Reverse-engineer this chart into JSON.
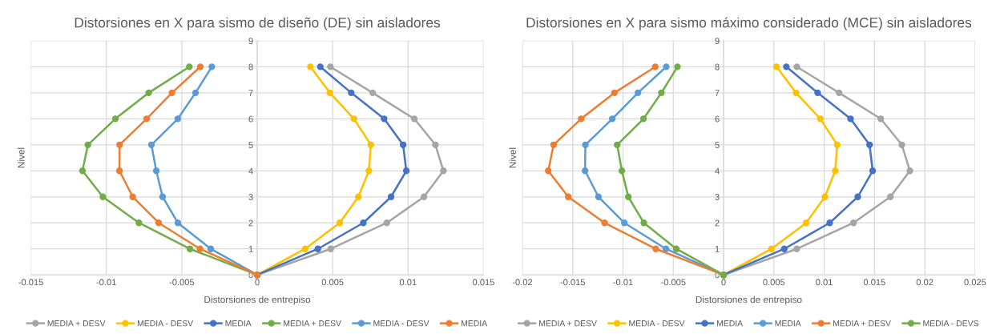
{
  "chart_data": [
    {
      "type": "line",
      "title": "Distorsiones en X para sismo de diseño (DE) sin aisladores",
      "xlabel": "Distorsiones de entrepiso",
      "ylabel": "Nivel",
      "xlim": [
        -0.015,
        0.015
      ],
      "xticks": [
        -0.015,
        -0.01,
        -0.005,
        0,
        0.005,
        0.01,
        0.015
      ],
      "ylim": [
        0,
        9
      ],
      "yticks": [
        0,
        1,
        2,
        3,
        4,
        5,
        6,
        7,
        8,
        9
      ],
      "grid": true,
      "legend": "bottom",
      "marker": "circle",
      "line_style": "solid",
      "series": [
        {
          "name": "MEDIA + DESV",
          "color": "#a5a5a5",
          "x": [
            0,
            0.00487,
            0.00859,
            0.01105,
            0.01234,
            0.01181,
            0.01041,
            0.00765,
            0.00485
          ],
          "values": [
            0,
            1,
            2,
            3,
            4,
            5,
            6,
            7,
            8
          ]
        },
        {
          "name": "MEDIA - DESV",
          "color": "#ffc000",
          "x": [
            0,
            0.00317,
            0.00547,
            0.0067,
            0.0074,
            0.00753,
            0.00641,
            0.00482,
            0.00352
          ],
          "values": [
            0,
            1,
            2,
            3,
            4,
            5,
            6,
            7,
            8
          ]
        },
        {
          "name": "MEDIA",
          "color": "#4472c4",
          "x": [
            0,
            0.00402,
            0.00703,
            0.00887,
            0.00988,
            0.00967,
            0.00841,
            0.00623,
            0.00418
          ],
          "values": [
            0,
            1,
            2,
            3,
            4,
            5,
            6,
            7,
            8
          ]
        },
        {
          "name": "MEDIA + DESV",
          "color": "#70ad47",
          "x": [
            0,
            -0.00446,
            -0.00784,
            -0.01023,
            -0.01158,
            -0.01122,
            -0.0094,
            -0.00719,
            -0.0045
          ],
          "values": [
            0,
            1,
            2,
            3,
            4,
            5,
            6,
            7,
            8
          ]
        },
        {
          "name": "MEDIA - DESV",
          "color": "#5b9bd5",
          "x": [
            0,
            -0.00308,
            -0.00526,
            -0.00627,
            -0.00669,
            -0.00701,
            -0.00526,
            -0.00409,
            -0.00301
          ],
          "values": [
            0,
            1,
            2,
            3,
            4,
            5,
            6,
            7,
            8
          ]
        },
        {
          "name": "MEDIA",
          "color": "#ed7d31",
          "x": [
            0,
            -0.00379,
            -0.00653,
            -0.00825,
            -0.00913,
            -0.00912,
            -0.00733,
            -0.00565,
            -0.00377
          ],
          "values": [
            0,
            1,
            2,
            3,
            4,
            5,
            6,
            7,
            8
          ]
        }
      ]
    },
    {
      "type": "line",
      "title": "Distorsiones en X para sismo máximo considerado (MCE) sin aisladores",
      "xlabel": "Distorsiones de entrepiso",
      "ylabel": "Nivel",
      "xlim": [
        -0.02,
        0.025
      ],
      "xticks": [
        -0.02,
        -0.015,
        -0.01,
        -0.005,
        0,
        0.005,
        0.01,
        0.015,
        0.02,
        0.025
      ],
      "ylim": [
        0,
        9
      ],
      "yticks": [
        0,
        1,
        2,
        3,
        4,
        5,
        6,
        7,
        8,
        9
      ],
      "grid": true,
      "legend": "bottom",
      "marker": "circle",
      "line_style": "solid",
      "series": [
        {
          "name": "MEDIA + DESV",
          "color": "#a5a5a5",
          "x": [
            0,
            0.00728,
            0.01291,
            0.01658,
            0.01852,
            0.01772,
            0.01562,
            0.01148,
            0.00728
          ],
          "values": [
            0,
            1,
            2,
            3,
            4,
            5,
            6,
            7,
            8
          ]
        },
        {
          "name": "MEDIA - DESV",
          "color": "#ffc000",
          "x": [
            0,
            0.00476,
            0.00821,
            0.01007,
            0.0111,
            0.01129,
            0.00962,
            0.0072,
            0.00526
          ],
          "values": [
            0,
            1,
            2,
            3,
            4,
            5,
            6,
            7,
            8
          ]
        },
        {
          "name": "MEDIA",
          "color": "#4472c4",
          "x": [
            0,
            0.00603,
            0.01055,
            0.01334,
            0.01482,
            0.01451,
            0.01262,
            0.00935,
            0.00624
          ],
          "values": [
            0,
            1,
            2,
            3,
            4,
            5,
            6,
            7,
            8
          ]
        },
        {
          "name": "MEDIA",
          "color": "#5b9bd5",
          "x": [
            0,
            -0.00573,
            -0.00987,
            -0.01244,
            -0.01377,
            -0.01374,
            -0.01106,
            -0.00851,
            -0.0057
          ],
          "values": [
            0,
            1,
            2,
            3,
            4,
            5,
            6,
            7,
            8
          ]
        },
        {
          "name": "MEDIA + DESV",
          "color": "#ed7d31",
          "x": [
            0,
            -0.00674,
            -0.01183,
            -0.01544,
            -0.01743,
            -0.0169,
            -0.01416,
            -0.01085,
            -0.00679
          ],
          "values": [
            0,
            1,
            2,
            3,
            4,
            5,
            6,
            7,
            8
          ]
        },
        {
          "name": "MEDIA - DEVS",
          "color": "#70ad47",
          "x": [
            0,
            -0.0047,
            -0.00793,
            -0.00947,
            -0.01011,
            -0.01058,
            -0.00796,
            -0.00618,
            -0.00459
          ],
          "values": [
            0,
            1,
            2,
            3,
            4,
            5,
            6,
            7,
            8
          ]
        }
      ]
    }
  ]
}
